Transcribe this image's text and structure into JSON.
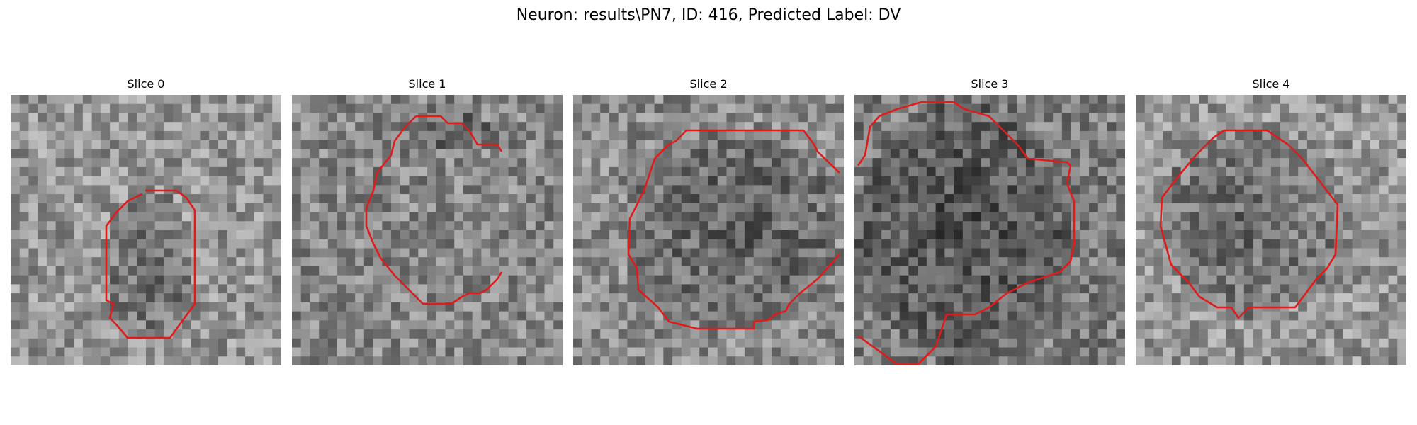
{
  "figure": {
    "title": "Neuron: results\\PN7, ID: 416, Predicted Label: DV"
  },
  "colors": {
    "contour": "#e01b1b",
    "background": "#ffffff",
    "text": "#000000"
  },
  "panels": [
    {
      "title": "Slice 0"
    },
    {
      "title": "Slice 1"
    },
    {
      "title": "Slice 2"
    },
    {
      "title": "Slice 3"
    },
    {
      "title": "Slice 4"
    }
  ]
}
